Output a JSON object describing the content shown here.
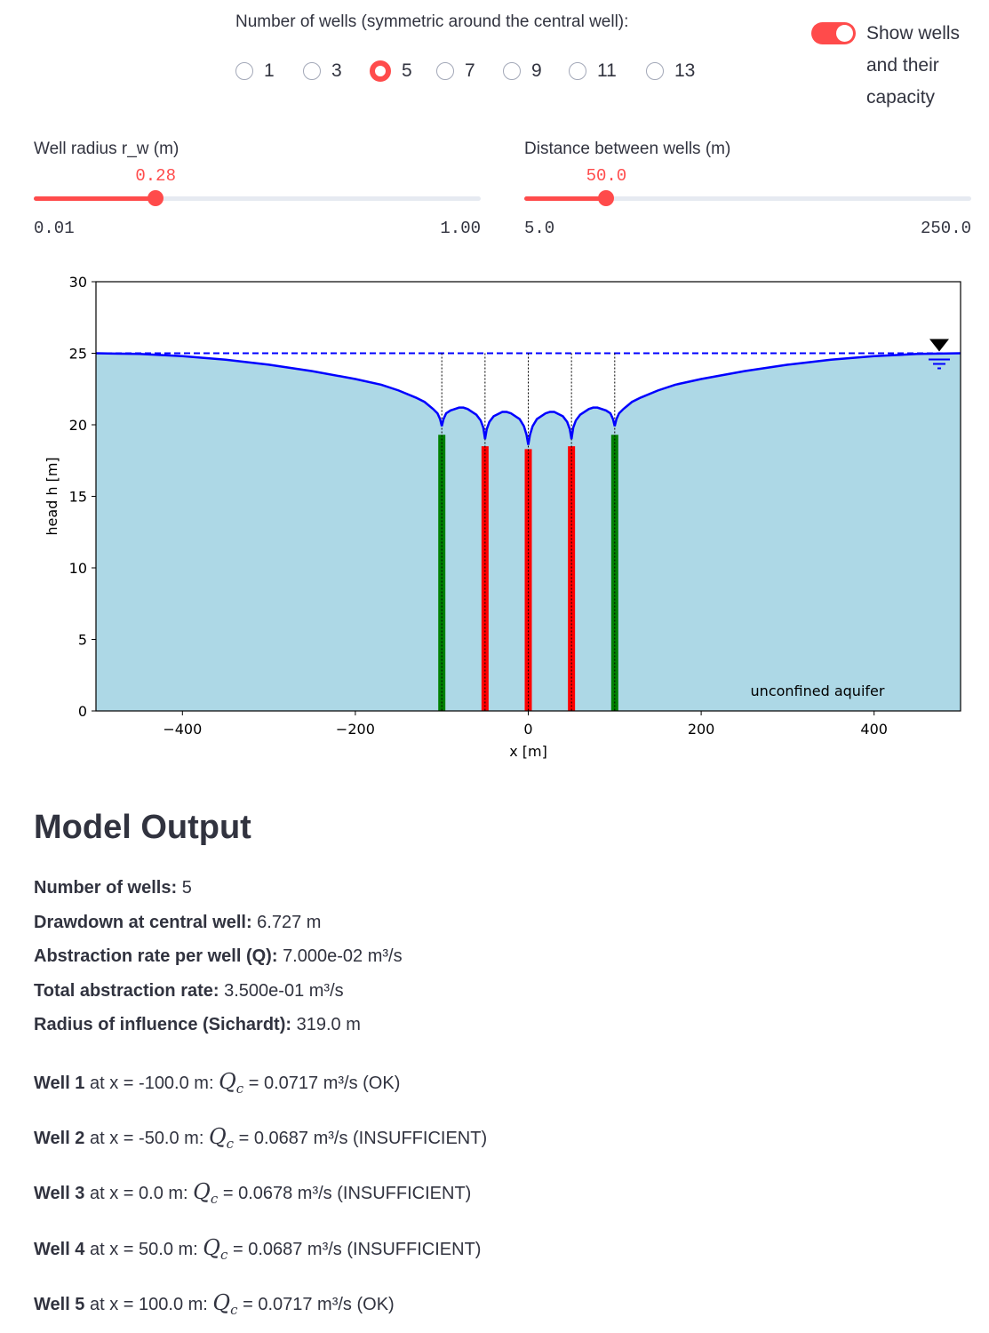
{
  "controls": {
    "wells_radio": {
      "label": "Number of wells (symmetric around the central well):",
      "options": [
        "1",
        "3",
        "5",
        "7",
        "9",
        "11",
        "13"
      ],
      "selected": "5"
    },
    "toggle": {
      "label": "Show wells and their capacity",
      "on": true
    },
    "radius_slider": {
      "label": "Well radius r_w (m)",
      "value": 0.28,
      "value_label": "0.28",
      "min": 0.01,
      "min_label": "0.01",
      "max": 1.0,
      "max_label": "1.00"
    },
    "distance_slider": {
      "label": "Distance between wells (m)",
      "value": 50,
      "value_label": "50.0",
      "min": 5,
      "min_label": "5.0",
      "max": 250,
      "max_label": "250.0"
    }
  },
  "chart_data": {
    "type": "line",
    "x_label": "x [m]",
    "y_label": "head h [m]",
    "xlim": [
      -500,
      500
    ],
    "ylim": [
      0,
      30
    ],
    "xticks": [
      {
        "value": -400,
        "label": "−400"
      },
      {
        "value": -200,
        "label": "−200"
      },
      0,
      200,
      400
    ],
    "yticks": [
      0,
      5,
      10,
      15,
      20,
      25,
      30
    ],
    "annotation": "unconfined aquifer",
    "water_table": 25,
    "fill_color": "#add8e6",
    "x": [
      -500,
      -450,
      -400,
      -350,
      -300,
      -250,
      -200,
      -170,
      -150,
      -130,
      -120,
      -110,
      -105,
      -102,
      -100,
      -98,
      -95,
      -90,
      -80,
      -75,
      -70,
      -60,
      -55,
      -52,
      -50,
      -48,
      -45,
      -40,
      -30,
      -25,
      -20,
      -10,
      -5,
      -2,
      0,
      2,
      5,
      10,
      20,
      25,
      30,
      40,
      45,
      48,
      50,
      52,
      55,
      60,
      70,
      75,
      80,
      90,
      95,
      98,
      100,
      102,
      105,
      110,
      120,
      130,
      150,
      170,
      200,
      250,
      300,
      350,
      400,
      450,
      500
    ],
    "series": [
      {
        "color": "#0000ff",
        "values": [
          25.0,
          24.95,
          24.8,
          24.55,
          24.2,
          23.75,
          23.2,
          22.8,
          22.4,
          21.9,
          21.6,
          21.1,
          20.8,
          20.4,
          19.9,
          20.4,
          20.8,
          21.0,
          21.2,
          21.2,
          21.1,
          20.7,
          20.3,
          19.8,
          19.0,
          19.7,
          20.2,
          20.6,
          20.9,
          20.9,
          20.8,
          20.4,
          19.9,
          19.3,
          18.6,
          19.3,
          19.9,
          20.4,
          20.8,
          20.9,
          20.9,
          20.6,
          20.2,
          19.7,
          19.0,
          19.8,
          20.3,
          20.7,
          21.1,
          21.2,
          21.2,
          21.0,
          20.8,
          20.4,
          19.9,
          20.4,
          20.8,
          21.1,
          21.6,
          21.9,
          22.4,
          22.8,
          23.2,
          23.75,
          24.2,
          24.55,
          24.8,
          24.95,
          25.0
        ]
      }
    ],
    "wells": {
      "x": [
        -100,
        -50,
        0,
        50,
        100
      ],
      "top": [
        19.3,
        18.5,
        18.3,
        18.5,
        19.3
      ],
      "colors": [
        "#008000",
        "#ff0000",
        "#ff0000",
        "#ff0000",
        "#008000"
      ]
    }
  },
  "output": {
    "title": "Model Output",
    "summary": [
      {
        "label": "Number of wells:",
        "value": "5"
      },
      {
        "label": "Drawdown at central well:",
        "value": "6.727 m"
      },
      {
        "label": "Abstraction rate per well (Q):",
        "value": "7.000e-02 m³/s"
      },
      {
        "label": "Total abstraction rate:",
        "value": "3.500e-01 m³/s"
      },
      {
        "label": "Radius of influence (Sichardt):",
        "value": "319.0 m"
      }
    ],
    "symbol": "Q",
    "subscript": "c",
    "wells": [
      {
        "name": "Well 1",
        "position": "at x = -100.0 m:",
        "result": "= 0.0717 m³/s (OK)"
      },
      {
        "name": "Well 2",
        "position": "at x = -50.0 m:",
        "result": "= 0.0687 m³/s (INSUFFICIENT)"
      },
      {
        "name": "Well 3",
        "position": "at x = 0.0 m:",
        "result": "= 0.0678 m³/s (INSUFFICIENT)"
      },
      {
        "name": "Well 4",
        "position": "at x = 50.0 m:",
        "result": "= 0.0687 m³/s (INSUFFICIENT)"
      },
      {
        "name": "Well 5",
        "position": "at x = 100.0 m:",
        "result": "= 0.0717 m³/s (OK)"
      }
    ]
  }
}
